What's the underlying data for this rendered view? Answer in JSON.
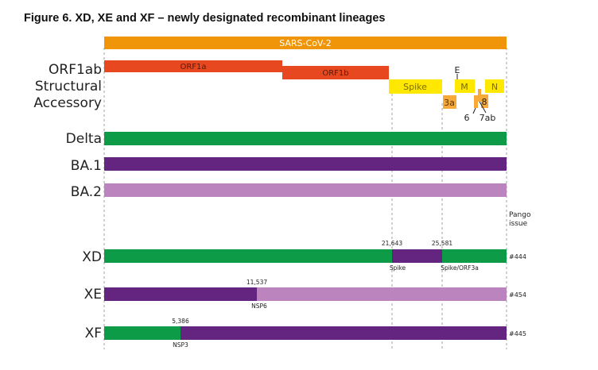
{
  "title": "Figure 6. XD, XE and XF – newly designated recombinant lineages",
  "genome": {
    "label": "SARS-CoV-2",
    "color": "#F0940A"
  },
  "annotation_rows": {
    "orf1ab": "ORF1ab",
    "structural": "Structural",
    "accessory": "Accessory"
  },
  "genes": {
    "orf1a": "ORF1a",
    "orf1b": "ORF1b",
    "spike": "Spike",
    "e": "E",
    "m": "M",
    "n": "N",
    "orf3a": "3a",
    "orf6": "6",
    "orf7ab": "7ab",
    "orf8": "8"
  },
  "colors": {
    "orf1ab": "#E8481F",
    "structural": "#FFE800",
    "accessory": "#F7A93A",
    "delta": "#0E9B48",
    "ba1": "#63257F",
    "ba2": "#BB84BE",
    "dashed": "#8a8a8a"
  },
  "parents": [
    {
      "label": "Delta",
      "color": "#0E9B48"
    },
    {
      "label": "BA.1",
      "color": "#63257F"
    },
    {
      "label": "BA.2",
      "color": "#BB84BE"
    }
  ],
  "pango_header": [
    "Pango",
    "issue"
  ],
  "recombinants": [
    {
      "label": "XD",
      "issue": "#444",
      "breakpoints": [
        {
          "position": "21,643",
          "region": "Spike"
        },
        {
          "position": "25,581",
          "region": "Spike/ORF3a"
        }
      ]
    },
    {
      "label": "XE",
      "issue": "#454",
      "breakpoints": [
        {
          "position": "11,537",
          "region": "NSP6"
        }
      ]
    },
    {
      "label": "XF",
      "issue": "#445",
      "breakpoints": [
        {
          "position": "5,386",
          "region": "NSP3"
        }
      ]
    }
  ]
}
